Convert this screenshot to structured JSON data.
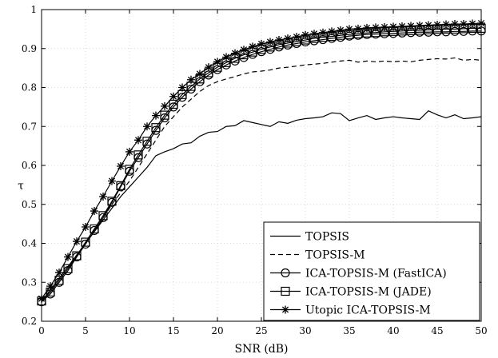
{
  "chart_data": {
    "type": "line",
    "title": "",
    "xlabel": "SNR (dB)",
    "ylabel": "τ",
    "xlim": [
      0,
      50
    ],
    "ylim": [
      0.2,
      1
    ],
    "grid": true,
    "legend_position": "bottom-right",
    "x_ticks": [
      "0",
      "5",
      "10",
      "15",
      "20",
      "25",
      "30",
      "35",
      "40",
      "45",
      "50"
    ],
    "y_ticks": [
      "0.2",
      "0.3",
      "0.4",
      "0.5",
      "0.6",
      "0.7",
      "0.8",
      "0.9",
      "1"
    ],
    "x": [
      0,
      1,
      2,
      3,
      4,
      5,
      6,
      7,
      8,
      9,
      10,
      11,
      12,
      13,
      14,
      15,
      16,
      17,
      18,
      19,
      20,
      21,
      22,
      23,
      24,
      25,
      26,
      27,
      28,
      29,
      30,
      31,
      32,
      33,
      34,
      35,
      36,
      37,
      38,
      39,
      40,
      41,
      42,
      43,
      44,
      45,
      46,
      47,
      48,
      49,
      50
    ],
    "series": [
      {
        "name": "TOPSIS",
        "line_style": "solid",
        "marker": "none",
        "values": [
          0.252,
          0.28,
          0.31,
          0.34,
          0.37,
          0.4,
          0.43,
          0.46,
          0.49,
          0.52,
          0.545,
          0.57,
          0.595,
          0.625,
          0.635,
          0.643,
          0.655,
          0.658,
          0.675,
          0.685,
          0.687,
          0.7,
          0.702,
          0.715,
          0.71,
          0.705,
          0.7,
          0.712,
          0.708,
          0.716,
          0.72,
          0.722,
          0.725,
          0.735,
          0.733,
          0.715,
          0.722,
          0.728,
          0.718,
          0.722,
          0.725,
          0.722,
          0.72,
          0.718,
          0.74,
          0.73,
          0.722,
          0.73,
          0.72,
          0.722,
          0.725
        ]
      },
      {
        "name": "TOPSIS-M",
        "line_style": "dashed",
        "marker": "none",
        "values": [
          0.252,
          0.28,
          0.31,
          0.34,
          0.37,
          0.4,
          0.43,
          0.465,
          0.5,
          0.53,
          0.56,
          0.595,
          0.63,
          0.665,
          0.7,
          0.725,
          0.75,
          0.77,
          0.79,
          0.805,
          0.815,
          0.822,
          0.828,
          0.835,
          0.84,
          0.842,
          0.845,
          0.85,
          0.852,
          0.855,
          0.858,
          0.86,
          0.862,
          0.865,
          0.868,
          0.87,
          0.865,
          0.868,
          0.866,
          0.868,
          0.866,
          0.868,
          0.866,
          0.87,
          0.872,
          0.874,
          0.873,
          0.876,
          0.87,
          0.872,
          0.87
        ]
      },
      {
        "name": "ICA-TOPSIS-M (FastICA)",
        "line_style": "solid",
        "marker": "circle",
        "values": [
          0.25,
          0.27,
          0.3,
          0.33,
          0.365,
          0.398,
          0.433,
          0.466,
          0.505,
          0.545,
          0.585,
          0.62,
          0.655,
          0.69,
          0.722,
          0.75,
          0.775,
          0.796,
          0.815,
          0.832,
          0.846,
          0.858,
          0.868,
          0.877,
          0.885,
          0.892,
          0.898,
          0.904,
          0.909,
          0.913,
          0.917,
          0.92,
          0.923,
          0.926,
          0.929,
          0.932,
          0.934,
          0.936,
          0.937,
          0.938,
          0.939,
          0.94,
          0.941,
          0.942,
          0.942,
          0.943,
          0.943,
          0.944,
          0.944,
          0.945,
          0.945
        ]
      },
      {
        "name": "ICA-TOPSIS-M (JADE)",
        "line_style": "solid",
        "marker": "square",
        "values": [
          0.252,
          0.275,
          0.305,
          0.335,
          0.368,
          0.403,
          0.437,
          0.471,
          0.508,
          0.548,
          0.59,
          0.627,
          0.662,
          0.697,
          0.729,
          0.757,
          0.782,
          0.803,
          0.822,
          0.838,
          0.852,
          0.864,
          0.875,
          0.884,
          0.891,
          0.898,
          0.904,
          0.91,
          0.914,
          0.918,
          0.922,
          0.926,
          0.929,
          0.931,
          0.934,
          0.936,
          0.938,
          0.94,
          0.941,
          0.943,
          0.944,
          0.945,
          0.946,
          0.947,
          0.948,
          0.949,
          0.95,
          0.95,
          0.951,
          0.952,
          0.952
        ]
      },
      {
        "name": "Utopic ICA-TOPSIS-M",
        "line_style": "solid",
        "marker": "star",
        "values": [
          0.258,
          0.29,
          0.325,
          0.365,
          0.405,
          0.442,
          0.483,
          0.52,
          0.56,
          0.598,
          0.635,
          0.665,
          0.7,
          0.728,
          0.752,
          0.777,
          0.8,
          0.82,
          0.835,
          0.852,
          0.866,
          0.878,
          0.888,
          0.897,
          0.905,
          0.912,
          0.917,
          0.922,
          0.926,
          0.93,
          0.935,
          0.938,
          0.941,
          0.944,
          0.947,
          0.95,
          0.951,
          0.953,
          0.954,
          0.955,
          0.956,
          0.957,
          0.958,
          0.959,
          0.96,
          0.961,
          0.962,
          0.963,
          0.963,
          0.964,
          0.965
        ]
      }
    ]
  }
}
